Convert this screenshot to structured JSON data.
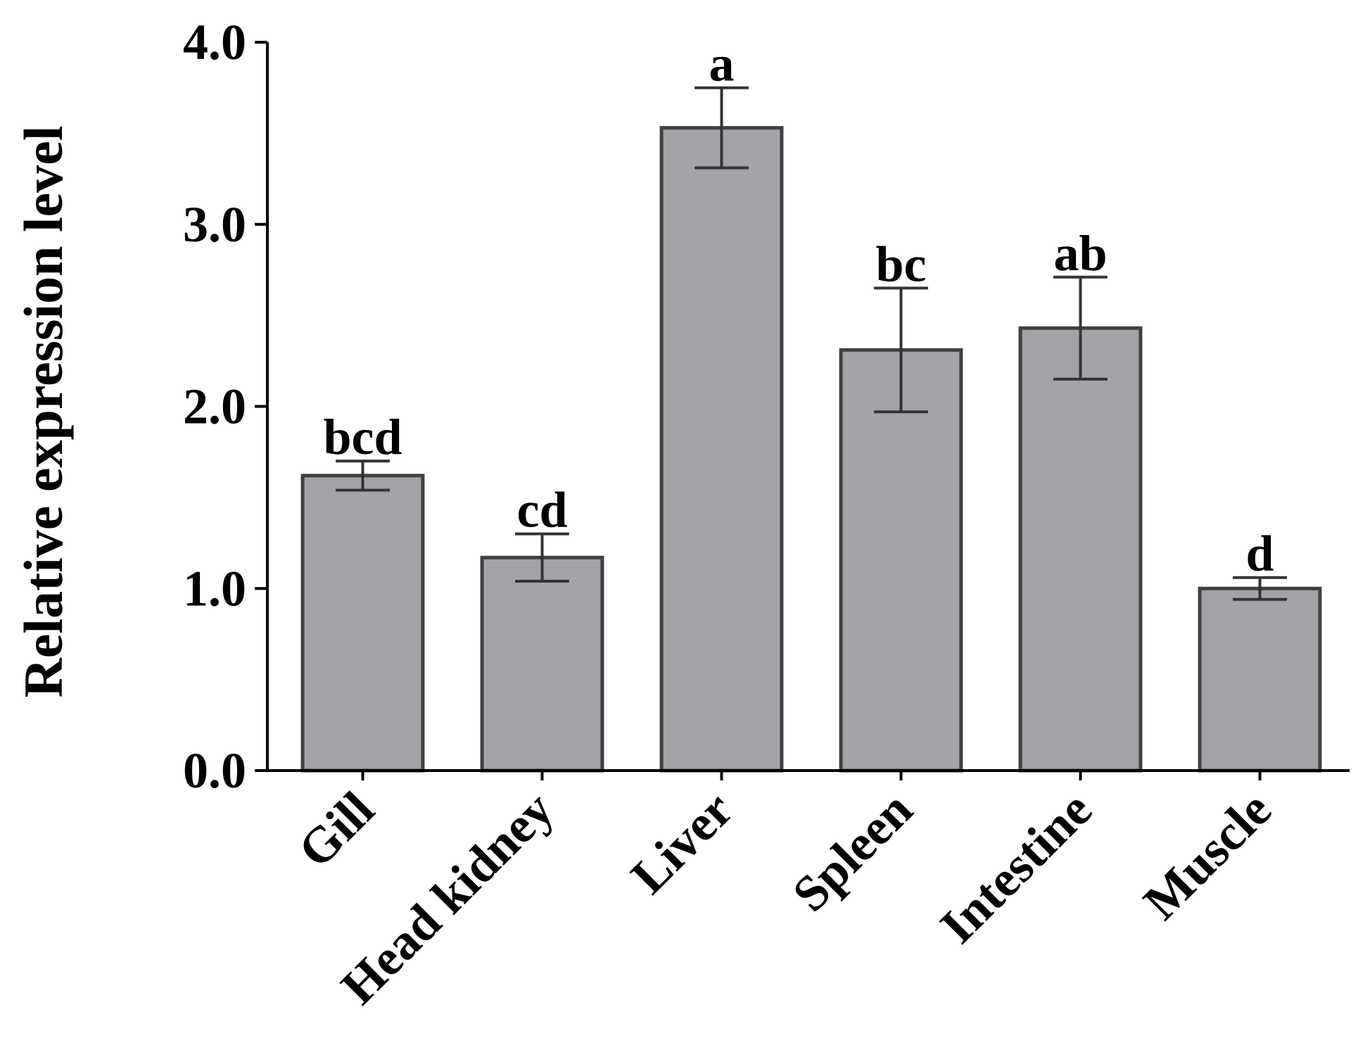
{
  "chart_data": {
    "type": "bar",
    "title": "",
    "xlabel": "",
    "ylabel": "Relative expression level",
    "ylim": [
      0,
      4
    ],
    "yticks": [
      "0.0",
      "1.0",
      "2.0",
      "3.0",
      "4.0"
    ],
    "categories": [
      "Gill",
      "Head kidney",
      "Liver",
      "Spleen",
      "Intestine",
      "Muscle"
    ],
    "values": [
      1.62,
      1.17,
      3.53,
      2.31,
      2.43,
      1.0
    ],
    "errors": [
      0.08,
      0.13,
      0.22,
      0.34,
      0.28,
      0.06
    ],
    "significance": [
      "bcd",
      "cd",
      "a",
      "bc",
      "ab",
      "d"
    ],
    "grid": false,
    "colors": {
      "bar_fill": "#a3a3a8",
      "bar_stroke": "#404040",
      "axis": "#000000"
    }
  }
}
